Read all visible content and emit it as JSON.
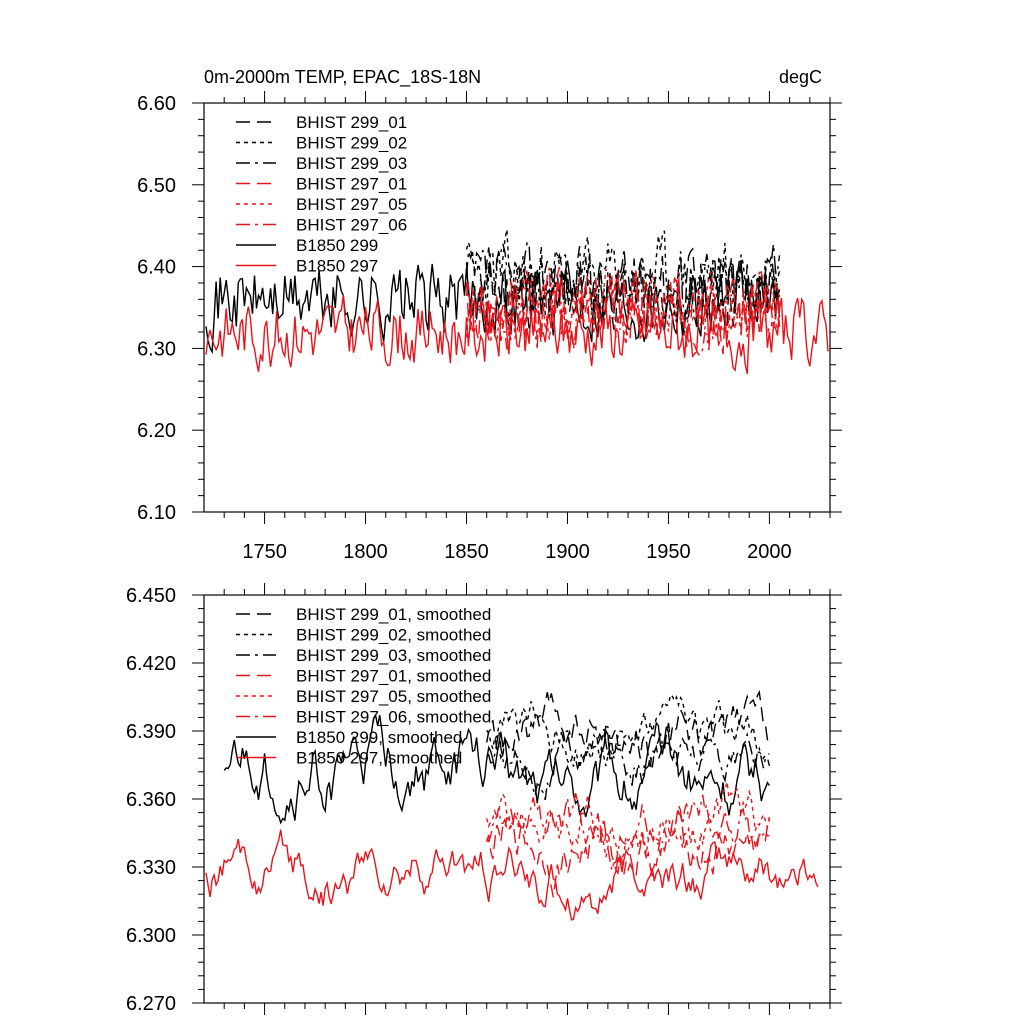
{
  "colors": {
    "black": "#000000",
    "red": "#e8141b"
  },
  "chart_data": [
    {
      "type": "line",
      "title": "0m-2000m TEMP, EPAC_18S-18N",
      "units": "degC",
      "xlim": [
        1720,
        2030
      ],
      "ylim": [
        6.1,
        6.6
      ],
      "xticks": [
        1750,
        1800,
        1850,
        1900,
        1950,
        2000
      ],
      "xtick_labels": [
        "1750",
        "1800",
        "1850",
        "1900",
        "1950",
        "2000"
      ],
      "yticks": [
        6.1,
        6.2,
        6.3,
        6.4,
        6.5,
        6.6
      ],
      "ytick_labels": [
        "6.10",
        "6.20",
        "6.30",
        "6.40",
        "6.50",
        "6.60"
      ],
      "legend_position": "top-left",
      "series": [
        {
          "name": "BHIST 299_01",
          "color": "#000000",
          "dash": "14,7",
          "start": 1850,
          "end": 2005,
          "mean": 6.372,
          "amp": 0.055,
          "seed": 11
        },
        {
          "name": "BHIST 299_02",
          "color": "#000000",
          "dash": "4,4",
          "start": 1850,
          "end": 2005,
          "mean": 6.385,
          "amp": 0.055,
          "seed": 23
        },
        {
          "name": "BHIST 299_03",
          "color": "#000000",
          "dash": "14,5,3,5",
          "start": 1850,
          "end": 2005,
          "mean": 6.378,
          "amp": 0.05,
          "seed": 37
        },
        {
          "name": "BHIST 297_01",
          "color": "#e8141b",
          "dash": "14,7",
          "start": 1850,
          "end": 2005,
          "mean": 6.345,
          "amp": 0.05,
          "seed": 41
        },
        {
          "name": "BHIST 297_05",
          "color": "#e8141b",
          "dash": "4,4",
          "start": 1850,
          "end": 2005,
          "mean": 6.35,
          "amp": 0.05,
          "seed": 53
        },
        {
          "name": "BHIST 297_06",
          "color": "#e8141b",
          "dash": "14,5,3,5",
          "start": 1850,
          "end": 2005,
          "mean": 6.348,
          "amp": 0.05,
          "seed": 67
        },
        {
          "name": "B1850 299",
          "color": "#000000",
          "dash": "",
          "start": 1721,
          "end": 2005,
          "mean": 6.36,
          "amp": 0.05,
          "seed": 71
        },
        {
          "name": "B1850 297",
          "color": "#e8141b",
          "dash": "",
          "start": 1721,
          "end": 2029,
          "mean": 6.32,
          "amp": 0.045,
          "seed": 83
        }
      ]
    },
    {
      "type": "line",
      "title": "",
      "units": "",
      "xlim": [
        1720,
        2030
      ],
      "ylim": [
        6.27,
        6.45
      ],
      "xticks": [
        1750,
        1800,
        1850,
        1900,
        1950,
        2000
      ],
      "xtick_labels": [],
      "yticks": [
        6.27,
        6.3,
        6.33,
        6.36,
        6.39,
        6.42,
        6.45
      ],
      "ytick_labels": [
        "6.270",
        "6.300",
        "6.330",
        "6.360",
        "6.390",
        "6.420",
        "6.450"
      ],
      "legend_position": "top-left",
      "series": [
        {
          "name": "BHIST 299_01, smoothed",
          "color": "#000000",
          "dash": "14,7",
          "start": 1860,
          "end": 2000,
          "mean": 6.385,
          "amp": 0.022,
          "seed": 111
        },
        {
          "name": "BHIST 299_02, smoothed",
          "color": "#000000",
          "dash": "4,4",
          "start": 1860,
          "end": 2000,
          "mean": 6.39,
          "amp": 0.02,
          "seed": 123
        },
        {
          "name": "BHIST 299_03, smoothed",
          "color": "#000000",
          "dash": "14,5,3,5",
          "start": 1860,
          "end": 2000,
          "mean": 6.382,
          "amp": 0.02,
          "seed": 137
        },
        {
          "name": "BHIST 297_01, smoothed",
          "color": "#e8141b",
          "dash": "14,7",
          "start": 1860,
          "end": 2000,
          "mean": 6.34,
          "amp": 0.024,
          "seed": 141
        },
        {
          "name": "BHIST 297_05, smoothed",
          "color": "#e8141b",
          "dash": "4,4",
          "start": 1860,
          "end": 2000,
          "mean": 6.35,
          "amp": 0.022,
          "seed": 153
        },
        {
          "name": "BHIST 297_06, smoothed",
          "color": "#e8141b",
          "dash": "14,5,3,5",
          "start": 1860,
          "end": 2000,
          "mean": 6.345,
          "amp": 0.022,
          "seed": 167
        },
        {
          "name": "B1850 299, smoothed",
          "color": "#000000",
          "dash": "",
          "start": 1730,
          "end": 2000,
          "mean": 6.37,
          "amp": 0.028,
          "seed": 171
        },
        {
          "name": "B1850 297, smoothed",
          "color": "#e8141b",
          "dash": "",
          "start": 1721,
          "end": 2024,
          "mean": 6.325,
          "amp": 0.022,
          "seed": 183
        }
      ]
    }
  ]
}
